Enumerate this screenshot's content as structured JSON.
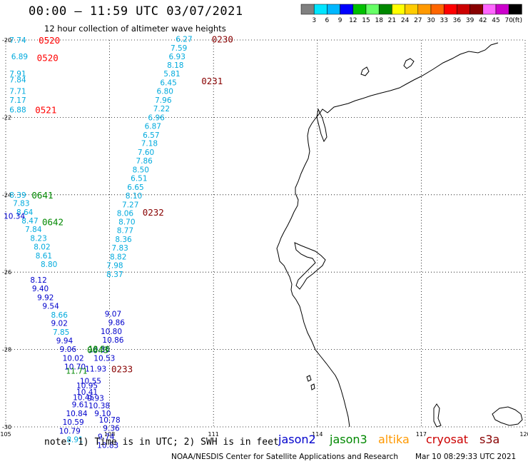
{
  "header": {
    "title": "00:00 — 11:59 UTC 03/07/2021",
    "subtitle": "12 hour collection of altimeter wave heights"
  },
  "colorbar": {
    "unit": "(ft)",
    "ticks": [
      "3",
      "6",
      "9",
      "12",
      "15",
      "18",
      "21",
      "24",
      "27",
      "30",
      "33",
      "36",
      "39",
      "42",
      "45",
      "70"
    ],
    "colors": [
      "#808080",
      "#00e5ff",
      "#00b7ff",
      "#0000ff",
      "#00c000",
      "#66ff66",
      "#008800",
      "#ffff00",
      "#ffcc00",
      "#ff9900",
      "#ff6600",
      "#ff0000",
      "#cc0000",
      "#880000",
      "#ff66ff",
      "#cc00cc",
      "#000000"
    ]
  },
  "chart_data": {
    "type": "scatter",
    "title": "12 hour collection of altimeter wave heights",
    "xlim": [
      105,
      120
    ],
    "ylim": [
      -30,
      -20
    ],
    "x_ticks": [
      "105",
      "108",
      "111",
      "114",
      "117",
      "120"
    ],
    "y_ticks": [
      "-20",
      "-22",
      "-24",
      "-26",
      "-28",
      "-30"
    ],
    "grid": true,
    "series": [
      {
        "name": "jason2",
        "color": "#0000cc",
        "points": [
          {
            "x": 105.25,
            "y": -24.55,
            "v": "10.34"
          },
          {
            "x": 105.95,
            "y": -26.2,
            "v": "8.12"
          },
          {
            "x": 106.0,
            "y": -26.42,
            "v": "9.40"
          },
          {
            "x": 106.15,
            "y": -26.65,
            "v": "9.92"
          },
          {
            "x": 106.3,
            "y": -26.87,
            "v": "9.54"
          },
          {
            "x": 106.55,
            "y": -27.32,
            "v": "9.02"
          },
          {
            "x": 106.7,
            "y": -27.77,
            "v": "9.94"
          },
          {
            "x": 106.8,
            "y": -27.99,
            "v": "9.06"
          },
          {
            "x": 106.95,
            "y": -28.22,
            "v": "10.02"
          },
          {
            "x": 107.0,
            "y": -28.44,
            "v": "10.70"
          },
          {
            "x": 107.35,
            "y": -28.93,
            "v": "10.95"
          },
          {
            "x": 107.35,
            "y": -29.1,
            "v": "10.41"
          },
          {
            "x": 107.25,
            "y": -29.23,
            "v": "10.45"
          },
          {
            "x": 107.15,
            "y": -29.42,
            "v": "9.61"
          },
          {
            "x": 107.05,
            "y": -29.65,
            "v": "10.84"
          },
          {
            "x": 106.95,
            "y": -29.87,
            "v": "10.59"
          },
          {
            "x": 106.85,
            "y": -30.1,
            "v": "10.79"
          },
          {
            "x": 107.6,
            "y": -28.5,
            "v": "11.93"
          },
          {
            "x": 107.45,
            "y": -28.81,
            "v": "10.55"
          },
          {
            "x": 107.6,
            "y": -29.25,
            "v": "9.93"
          },
          {
            "x": 107.7,
            "y": -29.45,
            "v": "10.38"
          },
          {
            "x": 107.8,
            "y": -29.65,
            "v": "9.10"
          },
          {
            "x": 108.0,
            "y": -29.82,
            "v": "10.78"
          },
          {
            "x": 108.05,
            "y": -30.03,
            "v": "9.36"
          },
          {
            "x": 107.9,
            "y": -30.25,
            "v": "9.74"
          },
          {
            "x": 107.95,
            "y": -30.47,
            "v": "10.83"
          },
          {
            "x": 107.7,
            "y": -28.0,
            "v": "10.36"
          },
          {
            "x": 107.85,
            "y": -28.22,
            "v": "10.53"
          },
          {
            "x": 108.1,
            "y": -27.08,
            "v": "9.07"
          },
          {
            "x": 108.2,
            "y": -27.3,
            "v": "9.86"
          },
          {
            "x": 108.05,
            "y": -27.53,
            "v": "10.80"
          },
          {
            "x": 108.1,
            "y": -27.75,
            "v": "10.86"
          }
        ]
      },
      {
        "name": "jason3",
        "color": "#008800",
        "points": [
          {
            "x": 107.7,
            "y": -27.98,
            "v": "13.50"
          },
          {
            "x": 107.05,
            "y": -28.55,
            "v": "11.71"
          }
        ]
      },
      {
        "name": "altika",
        "color": "#ff9900",
        "points": []
      },
      {
        "name": "cryosat",
        "color": "#cc0000",
        "points": []
      },
      {
        "name": "s3a",
        "color": "#880000",
        "points": []
      }
    ],
    "cyan_points": [
      {
        "x": 105.35,
        "y": -20.0,
        "v": "7.74"
      },
      {
        "x": 105.4,
        "y": -20.42,
        "v": "6.89"
      },
      {
        "x": 105.35,
        "y": -20.87,
        "v": "7.91"
      },
      {
        "x": 105.35,
        "y": -21.02,
        "v": "7.84"
      },
      {
        "x": 105.35,
        "y": -21.32,
        "v": "7.71"
      },
      {
        "x": 105.35,
        "y": -21.55,
        "v": "7.17"
      },
      {
        "x": 105.35,
        "y": -21.8,
        "v": "6.88"
      },
      {
        "x": 105.35,
        "y": -24.0,
        "v": "8.39"
      },
      {
        "x": 105.45,
        "y": -24.22,
        "v": "7.83"
      },
      {
        "x": 105.55,
        "y": -24.45,
        "v": "8.64"
      },
      {
        "x": 105.7,
        "y": -24.67,
        "v": "8.47"
      },
      {
        "x": 105.8,
        "y": -24.89,
        "v": "7.84"
      },
      {
        "x": 105.95,
        "y": -25.12,
        "v": "8.23"
      },
      {
        "x": 106.05,
        "y": -25.34,
        "v": "8.02"
      },
      {
        "x": 106.1,
        "y": -25.57,
        "v": "8.61"
      },
      {
        "x": 106.25,
        "y": -25.79,
        "v": "8.80"
      },
      {
        "x": 106.55,
        "y": -27.1,
        "v": "8.66"
      },
      {
        "x": 106.6,
        "y": -27.55,
        "v": "7.85"
      },
      {
        "x": 107.0,
        "y": -30.32,
        "v": "8.91"
      },
      {
        "x": 110.15,
        "y": -19.97,
        "v": "6.27"
      },
      {
        "x": 110.0,
        "y": -20.2,
        "v": "7.59"
      },
      {
        "x": 109.95,
        "y": -20.42,
        "v": "6.93"
      },
      {
        "x": 109.9,
        "y": -20.65,
        "v": "8.18"
      },
      {
        "x": 109.8,
        "y": -20.87,
        "v": "5.81"
      },
      {
        "x": 109.7,
        "y": -21.1,
        "v": "6.45"
      },
      {
        "x": 109.6,
        "y": -21.32,
        "v": "6.80"
      },
      {
        "x": 109.55,
        "y": -21.55,
        "v": "7.96"
      },
      {
        "x": 109.5,
        "y": -21.77,
        "v": "7.22"
      },
      {
        "x": 109.35,
        "y": -22.0,
        "v": "6.96"
      },
      {
        "x": 109.25,
        "y": -22.22,
        "v": "6.87"
      },
      {
        "x": 109.2,
        "y": -22.45,
        "v": "6.57"
      },
      {
        "x": 109.15,
        "y": -22.67,
        "v": "7.18"
      },
      {
        "x": 109.05,
        "y": -22.9,
        "v": "7.60"
      },
      {
        "x": 109.0,
        "y": -23.12,
        "v": "7.86"
      },
      {
        "x": 108.9,
        "y": -23.35,
        "v": "8.50"
      },
      {
        "x": 108.85,
        "y": -23.57,
        "v": "6.51"
      },
      {
        "x": 108.75,
        "y": -23.8,
        "v": "6.65"
      },
      {
        "x": 108.7,
        "y": -24.02,
        "v": "8.10"
      },
      {
        "x": 108.6,
        "y": -24.25,
        "v": "7.27"
      },
      {
        "x": 108.45,
        "y": -24.47,
        "v": "8.06"
      },
      {
        "x": 108.5,
        "y": -24.7,
        "v": "8.70"
      },
      {
        "x": 108.45,
        "y": -24.92,
        "v": "8.77"
      },
      {
        "x": 108.4,
        "y": -25.15,
        "v": "8.36"
      },
      {
        "x": 108.3,
        "y": -25.37,
        "v": "7.83"
      },
      {
        "x": 108.25,
        "y": -25.6,
        "v": "8.82"
      },
      {
        "x": 108.15,
        "y": -25.82,
        "v": "7.98"
      },
      {
        "x": 108.15,
        "y": -26.05,
        "v": "8.37"
      }
    ],
    "pass_labels": [
      {
        "x": 105.95,
        "y": -20.0,
        "text": "0520",
        "color": "#ff0000"
      },
      {
        "x": 105.9,
        "y": -20.45,
        "text": "0520",
        "color": "#ff0000"
      },
      {
        "x": 105.85,
        "y": -21.8,
        "text": "0521",
        "color": "#ff0000"
      },
      {
        "x": 110.95,
        "y": -19.97,
        "text": "0230",
        "color": "#880000"
      },
      {
        "x": 110.65,
        "y": -21.05,
        "text": "0231",
        "color": "#880000"
      },
      {
        "x": 108.95,
        "y": -24.45,
        "text": "0232",
        "color": "#880000"
      },
      {
        "x": 108.05,
        "y": -28.5,
        "text": "0233",
        "color": "#880000"
      },
      {
        "x": 105.75,
        "y": -24.0,
        "text": "0641",
        "color": "#008800"
      },
      {
        "x": 106.05,
        "y": -24.7,
        "text": "0642",
        "color": "#008800"
      },
      {
        "x": 107.35,
        "y": -28.0,
        "text": "0643",
        "color": "#008800"
      }
    ]
  },
  "footer": {
    "note": "note: 1) Time is in UTC; 2) SWH is in feet",
    "legend": [
      {
        "label": "jason2",
        "color": "#0000cc"
      },
      {
        "label": "jason3",
        "color": "#008800"
      },
      {
        "label": "altika",
        "color": "#ff9900"
      },
      {
        "label": "cryosat",
        "color": "#cc0000"
      },
      {
        "label": "s3a",
        "color": "#880000"
      }
    ],
    "credit": "NOAA/NESDIS Center for Satellite Applications and Research",
    "timestamp": "Mar 10 08:29:33 UTC 2021"
  }
}
